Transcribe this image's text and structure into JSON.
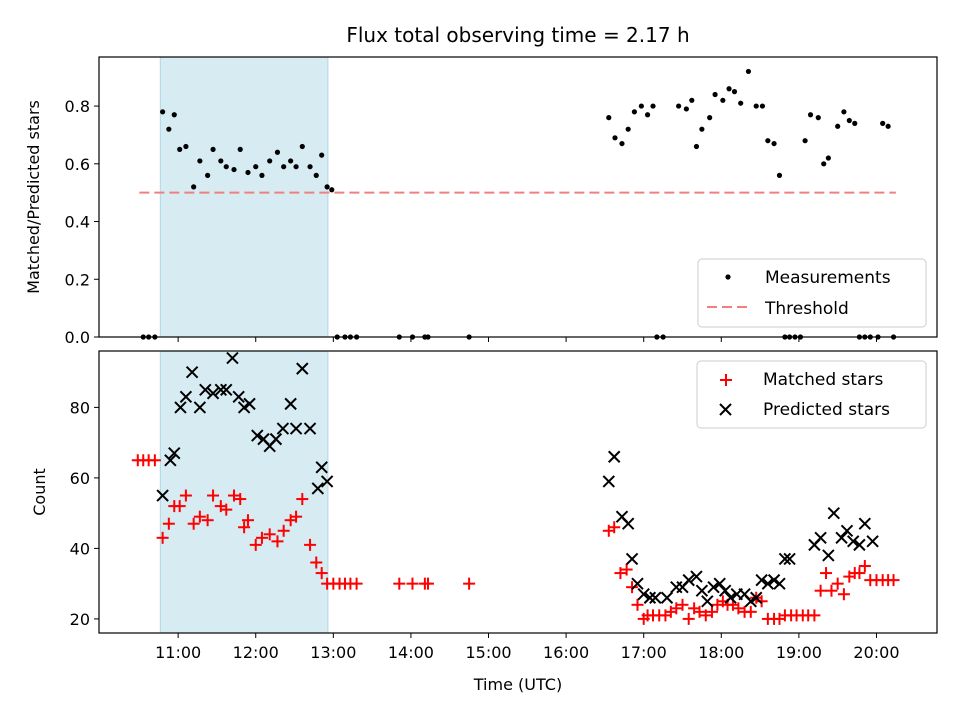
{
  "title": "Flux total observing time = 2.17 h",
  "chart_data": [
    {
      "type": "scatter",
      "ylabel": "Matched/Predicted stars",
      "xlim_hours": [
        9.98,
        20.78
      ],
      "ylim": [
        0,
        0.97
      ],
      "yticks": [
        "0.0",
        "0.2",
        "0.4",
        "0.6",
        "0.8"
      ],
      "highlight_span_hours": [
        10.77,
        12.93
      ],
      "highlight_color": "#add8e6",
      "threshold": {
        "name": "Threshold",
        "value": 0.5,
        "x_range_hours": [
          10.5,
          20.25
        ],
        "color": "#f08080"
      },
      "series": [
        {
          "name": "Measurements",
          "color": "#000000",
          "x_hours": [
            10.55,
            10.62,
            10.7,
            10.8,
            10.88,
            10.95,
            11.02,
            11.1,
            11.2,
            11.28,
            11.38,
            11.45,
            11.55,
            11.62,
            11.72,
            11.8,
            11.9,
            12.0,
            12.08,
            12.18,
            12.28,
            12.36,
            12.45,
            12.52,
            12.6,
            12.7,
            12.78,
            12.85,
            12.92,
            12.98,
            13.05,
            13.15,
            13.22,
            13.3,
            13.85,
            14.02,
            14.18,
            14.22,
            14.75,
            16.55,
            16.63,
            16.72,
            16.8,
            16.88,
            16.97,
            17.05,
            17.12,
            17.17,
            17.25,
            17.45,
            17.55,
            17.62,
            17.68,
            17.75,
            17.85,
            17.92,
            18.02,
            18.1,
            18.17,
            18.25,
            18.35,
            18.45,
            18.53,
            18.6,
            18.68,
            18.75,
            18.82,
            18.88,
            18.95,
            19.02,
            19.08,
            19.15,
            19.25,
            19.32,
            19.38,
            19.5,
            19.58,
            19.65,
            19.72,
            19.78,
            19.85,
            19.92,
            20.02,
            20.08,
            20.15,
            20.22
          ],
          "y": [
            0,
            0,
            0,
            0.78,
            0.72,
            0.77,
            0.65,
            0.66,
            0.52,
            0.61,
            0.56,
            0.65,
            0.61,
            0.59,
            0.58,
            0.65,
            0.57,
            0.59,
            0.56,
            0.61,
            0.64,
            0.59,
            0.61,
            0.59,
            0.66,
            0.59,
            0.56,
            0.63,
            0.52,
            0.51,
            0,
            0,
            0,
            0,
            0,
            0,
            0,
            0,
            0,
            0.76,
            0.69,
            0.67,
            0.72,
            0.78,
            0.8,
            0.77,
            0.8,
            0,
            0,
            0.8,
            0.79,
            0.82,
            0.66,
            0.72,
            0.76,
            0.84,
            0.82,
            0.86,
            0.85,
            0.81,
            0.92,
            0.8,
            0.8,
            0.68,
            0.67,
            0.56,
            0,
            0,
            0,
            0,
            0.68,
            0.77,
            0.76,
            0.6,
            0.62,
            0.73,
            0.78,
            0.75,
            0.74,
            0,
            0,
            0,
            0,
            0.74,
            0.73,
            0
          ]
        }
      ],
      "legend": {
        "position": "lower right",
        "entries": [
          "Measurements",
          "Threshold"
        ]
      }
    },
    {
      "type": "scatter",
      "xlabel": "Time (UTC)",
      "ylabel": "Count",
      "xlim_hours": [
        9.98,
        20.78
      ],
      "ylim": [
        16,
        96
      ],
      "xticks": [
        "11:00",
        "12:00",
        "13:00",
        "14:00",
        "15:00",
        "16:00",
        "17:00",
        "18:00",
        "19:00",
        "20:00"
      ],
      "yticks": [
        "20",
        "40",
        "60",
        "80"
      ],
      "highlight_span_hours": [
        10.77,
        12.93
      ],
      "series": [
        {
          "name": "Matched stars",
          "marker": "plus",
          "color": "#ff0000",
          "x_hours": [
            10.48,
            10.55,
            10.62,
            10.7,
            10.8,
            10.88,
            10.95,
            11.02,
            11.1,
            11.2,
            11.28,
            11.38,
            11.45,
            11.55,
            11.62,
            11.72,
            11.8,
            11.85,
            11.9,
            12.0,
            12.08,
            12.18,
            12.28,
            12.36,
            12.45,
            12.52,
            12.6,
            12.7,
            12.78,
            12.85,
            12.92,
            13.0,
            13.08,
            13.15,
            13.22,
            13.3,
            13.85,
            14.02,
            14.18,
            14.22,
            14.75,
            16.55,
            16.62,
            16.7,
            16.78,
            16.85,
            16.92,
            17.0,
            17.05,
            17.12,
            17.2,
            17.28,
            17.35,
            17.42,
            17.5,
            17.58,
            17.65,
            17.72,
            17.8,
            17.88,
            17.95,
            18.02,
            18.08,
            18.15,
            18.22,
            18.3,
            18.38,
            18.45,
            18.52,
            18.6,
            18.68,
            18.75,
            18.82,
            18.9,
            18.97,
            19.05,
            19.12,
            19.2,
            19.28,
            19.35,
            19.42,
            19.5,
            19.58,
            19.65,
            19.72,
            19.78,
            19.85,
            19.92,
            20.0,
            20.08,
            20.15,
            20.22
          ],
          "y": [
            65,
            65,
            65,
            65,
            43,
            47,
            52,
            52,
            55,
            47,
            49,
            48,
            55,
            52,
            51,
            55,
            54,
            46,
            48,
            41,
            43,
            44,
            42,
            45,
            48,
            49,
            54,
            41,
            36,
            33,
            30,
            30,
            30,
            30,
            30,
            30,
            30,
            30,
            30,
            30,
            30,
            45,
            46,
            33,
            34,
            29,
            24,
            20,
            21,
            21,
            21,
            21,
            22,
            23,
            24,
            20,
            23,
            22,
            21,
            22,
            24,
            25,
            24,
            24,
            23,
            22,
            22,
            26,
            25,
            20,
            20,
            20,
            21,
            21,
            21,
            21,
            21,
            21,
            28,
            33,
            28,
            30,
            27,
            32,
            33,
            33,
            35,
            31,
            31,
            31,
            31,
            31
          ]
        },
        {
          "name": "Predicted stars",
          "marker": "x",
          "color": "#000000",
          "x_hours": [
            10.8,
            10.9,
            10.95,
            11.03,
            11.1,
            11.18,
            11.28,
            11.35,
            11.45,
            11.55,
            11.62,
            11.7,
            11.78,
            11.85,
            11.92,
            12.02,
            12.1,
            12.18,
            12.26,
            12.35,
            12.45,
            12.52,
            12.6,
            12.7,
            12.8,
            12.85,
            12.92,
            16.55,
            16.62,
            16.72,
            16.8,
            16.85,
            16.92,
            17.0,
            17.08,
            17.15,
            17.3,
            17.42,
            17.5,
            17.58,
            17.68,
            17.75,
            17.82,
            17.9,
            17.98,
            18.05,
            18.12,
            18.2,
            18.3,
            18.38,
            18.45,
            18.52,
            18.6,
            18.68,
            18.75,
            18.82,
            18.88,
            19.2,
            19.28,
            19.38,
            19.45,
            19.55,
            19.62,
            19.7,
            19.78,
            19.85,
            19.95
          ],
          "y": [
            55,
            65,
            67,
            80,
            83,
            90,
            80,
            85,
            84,
            85,
            85,
            94,
            83,
            80,
            81,
            72,
            71,
            69,
            71,
            74,
            81,
            74,
            91,
            74,
            57,
            63,
            59,
            59,
            66,
            49,
            47,
            37,
            30,
            27,
            26,
            26,
            26,
            29,
            29,
            31,
            32,
            28,
            25,
            29,
            30,
            28,
            26,
            27,
            27,
            25,
            26,
            31,
            30,
            31,
            30,
            37,
            37,
            41,
            43,
            38,
            50,
            43,
            45,
            42,
            41,
            47,
            42
          ]
        }
      ],
      "legend": {
        "position": "upper right",
        "entries": [
          "Matched stars",
          "Predicted stars"
        ]
      }
    }
  ]
}
